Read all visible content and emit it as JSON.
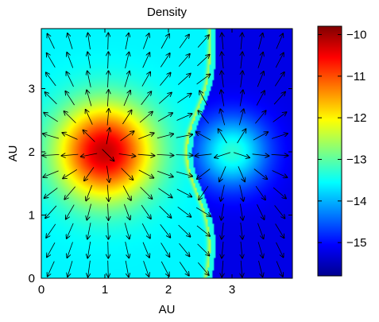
{
  "chart_data": {
    "type": "heatmap",
    "title": "Density",
    "xlabel": "AU",
    "ylabel": "AU",
    "xlim": [
      0,
      4
    ],
    "ylim": [
      0,
      4
    ],
    "x_ticks": [
      0,
      1,
      2,
      3
    ],
    "y_ticks": [
      0,
      1,
      2,
      3
    ],
    "x_tick_labels": [
      "0",
      "1",
      "2",
      "3"
    ],
    "y_tick_labels": [
      "0",
      "1",
      "2",
      "3"
    ],
    "colorbar": {
      "range": [
        -15.8,
        -9.8
      ],
      "ticks": [
        -15,
        -14,
        -13,
        -12,
        -11,
        -10
      ],
      "tick_labels": [
        "−15",
        "−14",
        "−13",
        "−12",
        "−11",
        "−10"
      ],
      "colormap": "jet"
    },
    "sources": [
      {
        "x": 1.0,
        "y": 2.0,
        "peak": -10.2
      },
      {
        "x": 3.0,
        "y": 2.0,
        "peak": -13.3
      }
    ],
    "background_levels": {
      "left_region": -13.6,
      "right_region": -15.2
    },
    "overlay": "velocity arrows (quiver)",
    "grid": false
  }
}
